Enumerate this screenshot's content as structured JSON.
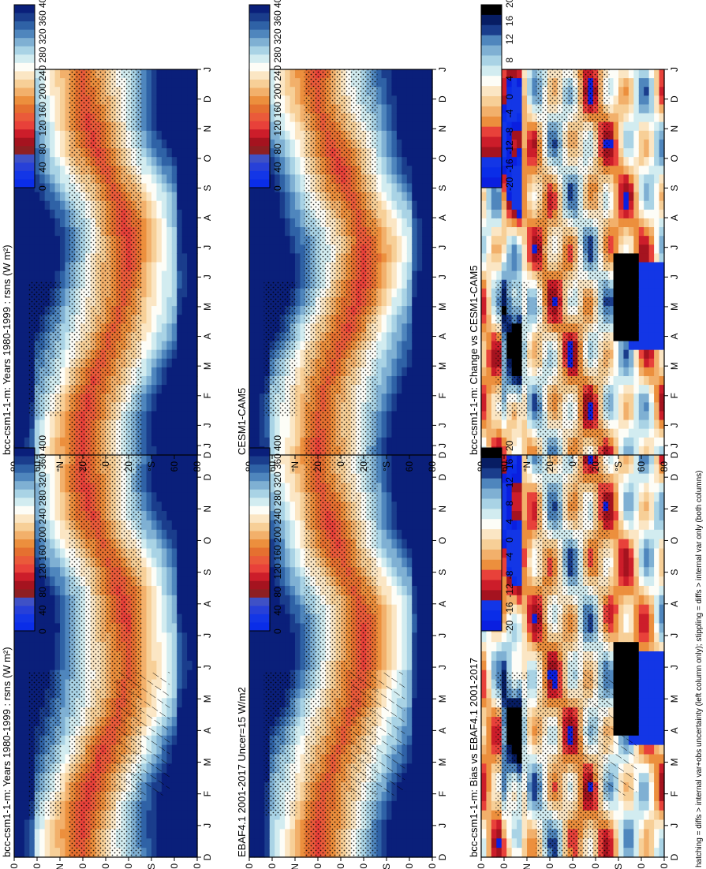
{
  "figure": {
    "footnote": "hatching = diffs > internal var+obs uncertainty (left column only); stippling = diffs > internal var only (both columns)"
  },
  "palettes": {
    "absolute": [
      "#0a1f7a",
      "#1a3d8c",
      "#2f62a6",
      "#4f86bd",
      "#7fb0d3",
      "#a9d3e5",
      "#d2ecf0",
      "#fdfdf7",
      "#fbe6c4",
      "#f7cf97",
      "#f2b06b",
      "#ec8f3d",
      "#e57030",
      "#ea5a3a",
      "#e8413a",
      "#cc1d2a",
      "#a5131f",
      "#8e1f22",
      "#3f51c6",
      "#2740d8",
      "#1336e6",
      "#0a2de8"
    ],
    "difference": [
      "#000000",
      "#071d63",
      "#1a3d8c",
      "#4f86bd",
      "#7fb0d3",
      "#a9d3e5",
      "#d2ecf0",
      "#fdfdf7",
      "#fbe6c4",
      "#f7cf97",
      "#f2b06b",
      "#ec8f3d",
      "#e8413a",
      "#cc1d2a",
      "#a5131f",
      "#1336e6",
      "#0a2de8",
      "#0a1fe0"
    ]
  },
  "colorbars": {
    "absolute_ticks": [
      "400",
      "360",
      "320",
      "280",
      "240",
      "200",
      "160",
      "120",
      "80",
      "40",
      "0"
    ],
    "difference_ticks": [
      "20",
      "16",
      "12",
      "8",
      "4",
      "0",
      "-4",
      "-8",
      "-12",
      "-16",
      "-20"
    ]
  },
  "chart_data": [
    {
      "panel": "top-left",
      "type": "heatmap",
      "title": "bcc-csm1-1-m: Years 1980-1999 : rsns (W m²)",
      "x_categories": [
        "D",
        "J",
        "F",
        "M",
        "A",
        "M",
        "J",
        "J",
        "A",
        "S",
        "O",
        "N",
        "D",
        "J"
      ],
      "y_ticks": [
        "80",
        "60",
        "°N",
        "20",
        "0",
        "20",
        "°S",
        "60",
        "80"
      ],
      "colorbar_range": [
        0,
        400
      ],
      "hatching": true,
      "stippling": true
    },
    {
      "panel": "top-right",
      "type": "heatmap",
      "title": "bcc-csm1-1-m: Years 1980-1999 : rsns (W m²)",
      "x_categories": [
        "D",
        "J",
        "F",
        "M",
        "A",
        "M",
        "J",
        "J",
        "A",
        "S",
        "O",
        "N",
        "D",
        "J"
      ],
      "y_ticks": [
        "80",
        "60",
        "°N",
        "20",
        "0",
        "20",
        "°S",
        "60",
        "80"
      ],
      "colorbar_range": [
        0,
        400
      ],
      "hatching": false,
      "stippling": true
    },
    {
      "panel": "middle-left",
      "type": "heatmap",
      "title": "EBAF4.1 2001-2017 Uncer=15 W/m2",
      "x_categories": [
        "D",
        "J",
        "F",
        "M",
        "A",
        "M",
        "J",
        "J",
        "A",
        "S",
        "O",
        "N",
        "D",
        "J"
      ],
      "y_ticks": [
        "80",
        "60",
        "°N",
        "20",
        "0",
        "20",
        "°S",
        "60",
        "80"
      ],
      "colorbar_range": [
        0,
        400
      ],
      "hatching": true,
      "stippling": true
    },
    {
      "panel": "middle-right",
      "type": "heatmap",
      "title": "CESM1-CAM5",
      "x_categories": [
        "D",
        "J",
        "F",
        "M",
        "A",
        "M",
        "J",
        "J",
        "A",
        "S",
        "O",
        "N",
        "D",
        "J"
      ],
      "y_ticks": [
        "80",
        "60",
        "°N",
        "20",
        "0",
        "20",
        "°S",
        "60",
        "80"
      ],
      "colorbar_range": [
        0,
        400
      ],
      "hatching": false,
      "stippling": true
    },
    {
      "panel": "bottom-left",
      "type": "heatmap",
      "title": "bcc-csm1-1-m: Bias vs EBAF4.1 2001-2017",
      "x_categories": [
        "D",
        "J",
        "F",
        "M",
        "A",
        "M",
        "J",
        "J",
        "A",
        "S",
        "O",
        "N",
        "D",
        "J"
      ],
      "y_ticks": [
        "80",
        "60",
        "°N",
        "20",
        "0",
        "20",
        "°S",
        "60",
        "80"
      ],
      "colorbar_range": [
        -20,
        20
      ],
      "hatching": true,
      "stippling": true
    },
    {
      "panel": "bottom-right",
      "type": "heatmap",
      "title": "bcc-csm1-1-m: Change vs CESM1-CAM5",
      "x_categories": [
        "D",
        "J",
        "F",
        "M",
        "A",
        "M",
        "J",
        "J",
        "A",
        "S",
        "O",
        "N",
        "D",
        "J"
      ],
      "y_ticks": [
        "80",
        "60",
        "°N",
        "20",
        "0",
        "20",
        "°S",
        "60",
        "80"
      ],
      "colorbar_range": [
        -20,
        20
      ],
      "hatching": false,
      "stippling": true
    }
  ]
}
